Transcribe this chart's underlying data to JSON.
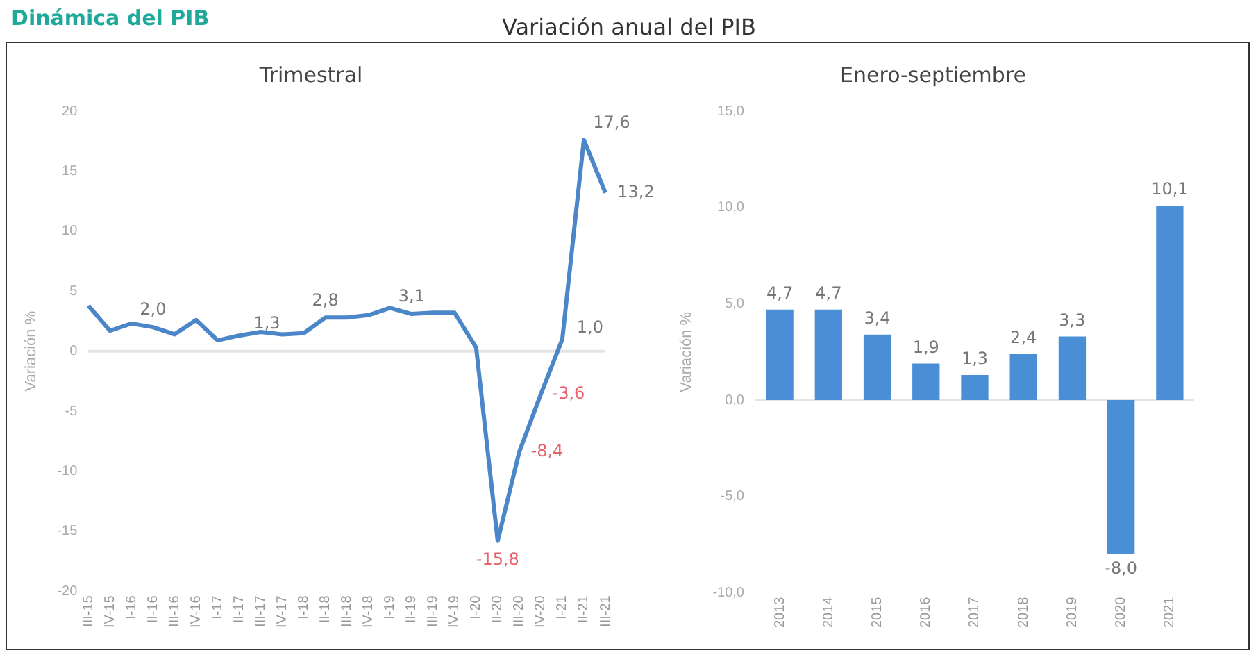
{
  "chart_data": [
    {
      "type": "line",
      "title": "Trimestral",
      "ylabel": "Variación %",
      "annotations": [
        "Dinámica del PIB",
        "Variación anual del PIB"
      ],
      "categories": [
        "III-15",
        "IV-15",
        "I-16",
        "II-16",
        "III-16",
        "IV-16",
        "I-17",
        "II-17",
        "III-17",
        "IV-17",
        "I-18",
        "II-18",
        "III-18",
        "IV-18",
        "I-19",
        "II-19",
        "III-19",
        "IV-19",
        "I-20",
        "II-20",
        "III-20",
        "IV-20",
        "I-21",
        "II-21",
        "III-21"
      ],
      "values": [
        3.8,
        1.7,
        2.3,
        2.0,
        1.4,
        2.6,
        0.9,
        1.3,
        1.6,
        1.4,
        1.5,
        2.8,
        2.8,
        3.0,
        3.6,
        3.1,
        3.2,
        3.2,
        0.3,
        -15.8,
        -8.4,
        -3.6,
        1.0,
        17.6,
        13.2
      ],
      "value_labels": [
        null,
        null,
        null,
        "2,0",
        null,
        null,
        null,
        "1,3",
        null,
        null,
        null,
        "2,8",
        null,
        null,
        null,
        "3,1",
        null,
        null,
        null,
        "-15,8",
        "-8,4",
        "-3,6",
        "1,0",
        "17,6",
        "13,2"
      ],
      "color": "#4a86c8",
      "marker": "none",
      "line_style": "solid",
      "grid": false,
      "ylim": [
        -20,
        20
      ],
      "yticks": [
        -20,
        -15,
        -10,
        -5,
        0,
        5,
        10,
        15,
        20
      ],
      "ref_lines": [
        {
          "axis": "y",
          "value": 0,
          "color": "#e4e4e4"
        }
      ]
    },
    {
      "type": "bar",
      "title": "Enero-septiembre",
      "ylabel": "Variación %",
      "categories": [
        "2013",
        "2014",
        "2015",
        "2016",
        "2017",
        "2018",
        "2019",
        "2020",
        "2021"
      ],
      "values": [
        4.7,
        4.7,
        3.4,
        1.9,
        1.3,
        2.4,
        3.3,
        -8.0,
        10.1
      ],
      "value_labels": [
        "4,7",
        "4,7",
        "3,4",
        "1,9",
        "1,3",
        "2,4",
        "3,3",
        "-8,0",
        "10,1"
      ],
      "color": "#4a8fd6",
      "grid": false,
      "ylim": [
        -10,
        15
      ],
      "yticks": [
        {
          "value": -10,
          "label": "-10,0"
        },
        {
          "value": -5,
          "label": "-5,0"
        },
        {
          "value": 0,
          "label": "0,0"
        },
        {
          "value": 5,
          "label": "5,0"
        },
        {
          "value": 10,
          "label": "10,0"
        },
        {
          "value": 15,
          "label": "15,0"
        }
      ],
      "ref_lines": [
        {
          "axis": "y",
          "value": 0,
          "color": "#e4e4e4"
        }
      ]
    }
  ]
}
